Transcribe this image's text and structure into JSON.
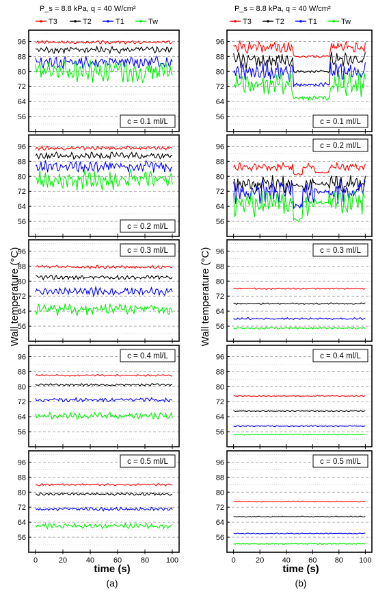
{
  "figure": {
    "ylabel": "Wall temperature (°C)",
    "xlabel": "time (s)",
    "legend_header": "P_s = 8.8 kPa, q = 40 W/cm²",
    "series": [
      {
        "name": "T3",
        "color": "#ff0000",
        "marker": "circle"
      },
      {
        "name": "T2",
        "color": "#000000",
        "marker": "square"
      },
      {
        "name": "T1",
        "color": "#0000ff",
        "marker": "triangle"
      },
      {
        "name": "Tw",
        "color": "#00ee00",
        "marker": "triangle-down"
      }
    ]
  },
  "chart_data": [
    {
      "type": "line",
      "column": "a",
      "column_label": "(a)",
      "annotation": "c = 0.1 ml/L",
      "annotation_position": "bottom-right",
      "xlim": [
        -5,
        105
      ],
      "ylim": [
        48,
        102
      ],
      "xticks": [
        0,
        20,
        40,
        60,
        80,
        100
      ],
      "yticks": [
        56,
        64,
        72,
        80,
        88,
        96
      ],
      "series": [
        {
          "name": "T3",
          "base": 95.5,
          "amp": 1.0,
          "dips": []
        },
        {
          "name": "T2",
          "base": 91.5,
          "amp": 2.0,
          "dips": []
        },
        {
          "name": "T1",
          "base": 85.0,
          "amp": 3.5,
          "dips": []
        },
        {
          "name": "Tw",
          "base": 80.0,
          "amp": 6.5,
          "dips": []
        }
      ]
    },
    {
      "type": "line",
      "column": "a",
      "column_label": "(a)",
      "annotation": "c = 0.2 ml/L",
      "annotation_position": "bottom-right",
      "xlim": [
        -5,
        105
      ],
      "ylim": [
        48,
        102
      ],
      "xticks": [
        0,
        20,
        40,
        60,
        80,
        100
      ],
      "yticks": [
        56,
        64,
        72,
        80,
        88,
        96
      ],
      "series": [
        {
          "name": "T3",
          "base": 95.0,
          "amp": 1.2,
          "dips": []
        },
        {
          "name": "T2",
          "base": 91.0,
          "amp": 2.0,
          "dips": []
        },
        {
          "name": "T1",
          "base": 85.0,
          "amp": 3.5,
          "dips": []
        },
        {
          "name": "Tw",
          "base": 78.0,
          "amp": 6.0,
          "dips": []
        }
      ]
    },
    {
      "type": "line",
      "column": "a",
      "column_label": "(a)",
      "annotation": "c = 0.3 ml/L",
      "annotation_position": "top-right",
      "xlim": [
        -5,
        105
      ],
      "ylim": [
        48,
        102
      ],
      "xticks": [
        0,
        20,
        40,
        60,
        80,
        100
      ],
      "yticks": [
        56,
        64,
        72,
        80,
        88,
        96
      ],
      "series": [
        {
          "name": "T3",
          "base": 87.5,
          "amp": 1.0,
          "dips": []
        },
        {
          "name": "T2",
          "base": 82.0,
          "amp": 1.3,
          "dips": []
        },
        {
          "name": "T1",
          "base": 74.5,
          "amp": 2.5,
          "dips": []
        },
        {
          "name": "Tw",
          "base": 65.0,
          "amp": 3.5,
          "dips": []
        }
      ]
    },
    {
      "type": "line",
      "column": "a",
      "column_label": "(a)",
      "annotation": "c = 0.4 ml/L",
      "annotation_position": "top-right",
      "xlim": [
        -5,
        105
      ],
      "ylim": [
        48,
        102
      ],
      "xticks": [
        0,
        20,
        40,
        60,
        80,
        100
      ],
      "yticks": [
        56,
        64,
        72,
        80,
        88,
        96
      ],
      "series": [
        {
          "name": "T3",
          "base": 86.0,
          "amp": 0.5,
          "dips": []
        },
        {
          "name": "T2",
          "base": 81.0,
          "amp": 0.7,
          "dips": []
        },
        {
          "name": "T1",
          "base": 73.0,
          "amp": 1.2,
          "dips": []
        },
        {
          "name": "Tw",
          "base": 64.5,
          "amp": 2.0,
          "dips": []
        }
      ]
    },
    {
      "type": "line",
      "column": "a",
      "column_label": "(a)",
      "annotation": "c = 0.5 ml/L",
      "annotation_position": "top-right",
      "xlim": [
        -5,
        105
      ],
      "ylim": [
        48,
        102
      ],
      "xticks": [
        0,
        20,
        40,
        60,
        80,
        100
      ],
      "yticks": [
        56,
        64,
        72,
        80,
        88,
        96
      ],
      "series": [
        {
          "name": "T3",
          "base": 84.0,
          "amp": 0.6,
          "dips": []
        },
        {
          "name": "T2",
          "base": 79.0,
          "amp": 0.8,
          "dips": []
        },
        {
          "name": "T1",
          "base": 71.0,
          "amp": 1.0,
          "dips": []
        },
        {
          "name": "Tw",
          "base": 62.0,
          "amp": 1.5,
          "dips": []
        }
      ]
    },
    {
      "type": "line",
      "column": "b",
      "column_label": "(b)",
      "annotation": "c = 0.1 ml/L",
      "annotation_position": "bottom-right",
      "xlim": [
        -5,
        105
      ],
      "ylim": [
        48,
        102
      ],
      "xticks": [
        0,
        20,
        40,
        60,
        80,
        100
      ],
      "yticks": [
        56,
        64,
        72,
        80,
        88,
        96
      ],
      "series": [
        {
          "name": "T3",
          "base": 93.0,
          "amp": 3.5,
          "dips": [
            [
              45,
              73,
              88
            ]
          ]
        },
        {
          "name": "T2",
          "base": 86.0,
          "amp": 4.5,
          "dips": [
            [
              45,
              73,
              80
            ]
          ]
        },
        {
          "name": "T1",
          "base": 80.0,
          "amp": 6.0,
          "dips": [
            [
              45,
              73,
              73
            ]
          ]
        },
        {
          "name": "Tw",
          "base": 73.0,
          "amp": 7.0,
          "dips": [
            [
              45,
              73,
              66
            ]
          ]
        }
      ]
    },
    {
      "type": "line",
      "column": "b",
      "column_label": "(b)",
      "annotation": "c = 0.2 ml/L",
      "annotation_position": "top-right",
      "xlim": [
        -5,
        105
      ],
      "ylim": [
        48,
        102
      ],
      "xticks": [
        0,
        20,
        40,
        60,
        80,
        100
      ],
      "yticks": [
        56,
        64,
        72,
        80,
        88,
        96
      ],
      "series": [
        {
          "name": "T3",
          "base": 85.0,
          "amp": 2.5,
          "dips": [
            [
              45,
              52,
              81
            ],
            [
              62,
              72,
              82
            ]
          ]
        },
        {
          "name": "T2",
          "base": 76.0,
          "amp": 5.0,
          "dips": [
            [
              45,
              52,
              75
            ],
            [
              62,
              72,
              76
            ]
          ]
        },
        {
          "name": "T1",
          "base": 72.0,
          "amp": 7.0,
          "dips": [
            [
              45,
              52,
              64
            ],
            [
              62,
              72,
              72
            ]
          ]
        },
        {
          "name": "Tw",
          "base": 66.0,
          "amp": 8.0,
          "dips": [
            [
              45,
              52,
              57
            ],
            [
              62,
              72,
              66
            ]
          ]
        }
      ]
    },
    {
      "type": "line",
      "column": "b",
      "column_label": "(b)",
      "annotation": "c = 0.3 ml/L",
      "annotation_position": "top-right",
      "xlim": [
        -5,
        105
      ],
      "ylim": [
        48,
        102
      ],
      "xticks": [
        0,
        20,
        40,
        60,
        80,
        100
      ],
      "yticks": [
        56,
        64,
        72,
        80,
        88,
        96
      ],
      "series": [
        {
          "name": "T3",
          "base": 76.0,
          "amp": 0.4,
          "dips": []
        },
        {
          "name": "T2",
          "base": 68.0,
          "amp": 0.5,
          "dips": []
        },
        {
          "name": "T1",
          "base": 60.0,
          "amp": 0.6,
          "dips": []
        },
        {
          "name": "Tw",
          "base": 55.0,
          "amp": 0.6,
          "dips": []
        }
      ]
    },
    {
      "type": "line",
      "column": "b",
      "column_label": "(b)",
      "annotation": "c = 0.4 ml/L",
      "annotation_position": "top-right",
      "xlim": [
        -5,
        105
      ],
      "ylim": [
        48,
        102
      ],
      "xticks": [
        0,
        20,
        40,
        60,
        80,
        100
      ],
      "yticks": [
        56,
        64,
        72,
        80,
        88,
        96
      ],
      "series": [
        {
          "name": "T3",
          "base": 75.0,
          "amp": 0.3,
          "dips": []
        },
        {
          "name": "T2",
          "base": 67.0,
          "amp": 0.3,
          "dips": []
        },
        {
          "name": "T1",
          "base": 59.0,
          "amp": 0.3,
          "dips": []
        },
        {
          "name": "Tw",
          "base": 54.5,
          "amp": 0.3,
          "dips": []
        }
      ]
    },
    {
      "type": "line",
      "column": "b",
      "column_label": "(b)",
      "annotation": "c = 0.5 ml/L",
      "annotation_position": "top-right",
      "xlim": [
        -5,
        105
      ],
      "ylim": [
        48,
        102
      ],
      "xticks": [
        0,
        20,
        40,
        60,
        80,
        100
      ],
      "yticks": [
        56,
        64,
        72,
        80,
        88,
        96
      ],
      "series": [
        {
          "name": "T3",
          "base": 75.0,
          "amp": 0.3,
          "dips": []
        },
        {
          "name": "T2",
          "base": 67.0,
          "amp": 0.3,
          "dips": []
        },
        {
          "name": "T1",
          "base": 58.0,
          "amp": 0.3,
          "dips": []
        },
        {
          "name": "Tw",
          "base": 52.5,
          "amp": 0.3,
          "dips": []
        }
      ]
    }
  ]
}
